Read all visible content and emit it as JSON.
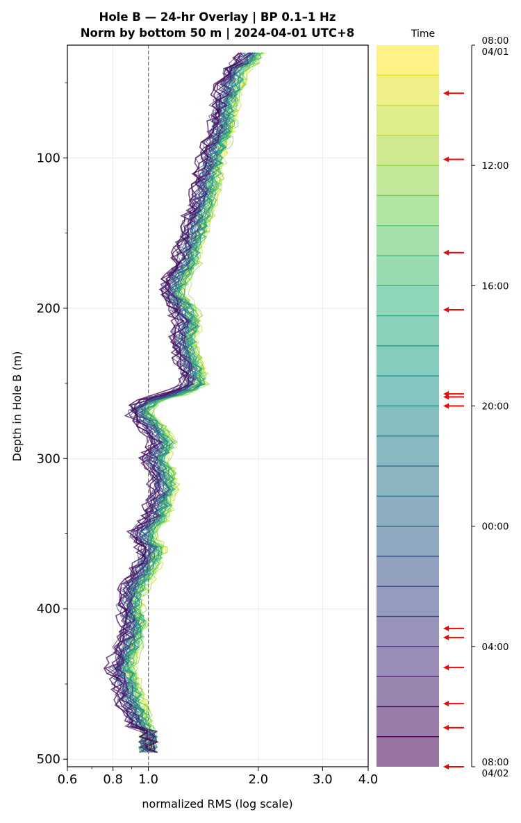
{
  "chart_data": {
    "type": "line",
    "title_line1": "Hole B — 24-hr Overlay  |  BP 0.1–1 Hz",
    "title_line2": "Norm by bottom 50 m  |  2024-04-01 UTC+8",
    "xlabel": "normalized RMS  (log scale)",
    "ylabel": "Depth in Hole B (m)",
    "x_scale": "log",
    "xlim": [
      0.6,
      4.0
    ],
    "ylim": [
      505,
      25
    ],
    "x_ticks": [
      0.6,
      0.8,
      1.0,
      2.0,
      3.0,
      4.0
    ],
    "x_tick_labels": [
      "0.6",
      "0.8",
      "1.0",
      "2.0",
      "3.0",
      "4.0"
    ],
    "y_ticks": [
      100,
      200,
      300,
      400,
      500
    ],
    "y_tick_labels": [
      "100",
      "200",
      "300",
      "400",
      "500"
    ],
    "reference_line_x": 1.0,
    "grid": true,
    "base_profile": [
      [
        30,
        1.85
      ],
      [
        40,
        1.75
      ],
      [
        50,
        1.7
      ],
      [
        60,
        1.65
      ],
      [
        70,
        1.62
      ],
      [
        80,
        1.6
      ],
      [
        90,
        1.55
      ],
      [
        100,
        1.5
      ],
      [
        110,
        1.48
      ],
      [
        120,
        1.45
      ],
      [
        130,
        1.42
      ],
      [
        140,
        1.38
      ],
      [
        150,
        1.35
      ],
      [
        160,
        1.3
      ],
      [
        170,
        1.28
      ],
      [
        180,
        1.2
      ],
      [
        190,
        1.17
      ],
      [
        200,
        1.25
      ],
      [
        210,
        1.3
      ],
      [
        220,
        1.25
      ],
      [
        230,
        1.28
      ],
      [
        240,
        1.32
      ],
      [
        250,
        1.35
      ],
      [
        255,
        1.25
      ],
      [
        262,
        1.0
      ],
      [
        270,
        0.95
      ],
      [
        280,
        1.05
      ],
      [
        290,
        1.1
      ],
      [
        300,
        1.05
      ],
      [
        310,
        1.1
      ],
      [
        320,
        1.12
      ],
      [
        330,
        1.08
      ],
      [
        340,
        1.05
      ],
      [
        350,
        0.97
      ],
      [
        360,
        1.03
      ],
      [
        370,
        1.0
      ],
      [
        380,
        0.95
      ],
      [
        390,
        0.9
      ],
      [
        400,
        0.9
      ],
      [
        410,
        0.92
      ],
      [
        420,
        0.9
      ],
      [
        430,
        0.87
      ],
      [
        440,
        0.85
      ],
      [
        450,
        0.88
      ],
      [
        460,
        0.9
      ],
      [
        470,
        0.93
      ],
      [
        480,
        0.97
      ],
      [
        490,
        1.0
      ],
      [
        497,
        1.0
      ]
    ],
    "series_count": 48,
    "colorbar": {
      "title": "Time",
      "n_bands": 24,
      "colormap": "viridis",
      "tick_labels": [
        {
          "hour": 0,
          "line1": "08:00",
          "line2": "04/01"
        },
        {
          "hour": 4,
          "line1": "12:00",
          "line2": ""
        },
        {
          "hour": 8,
          "line1": "16:00",
          "line2": ""
        },
        {
          "hour": 12,
          "line1": "20:00",
          "line2": ""
        },
        {
          "hour": 16,
          "line1": "00:00",
          "line2": ""
        },
        {
          "hour": 20,
          "line1": "04:00",
          "line2": ""
        },
        {
          "hour": 24,
          "line1": "08:00",
          "line2": "04/02"
        }
      ],
      "arrow_hours": [
        1.6,
        3.8,
        6.9,
        8.8,
        11.6,
        11.7,
        12.0,
        19.4,
        19.7,
        20.7,
        21.9,
        22.7,
        24.0
      ],
      "arrow_color": "#ff0000"
    },
    "colors": {
      "viridis_stops": [
        "#fde725",
        "#b5de2b",
        "#6ece58",
        "#35b779",
        "#1f9e89",
        "#26828e",
        "#31688e",
        "#3e4989",
        "#482878",
        "#440154"
      ],
      "reference_line": "#777777"
    }
  }
}
